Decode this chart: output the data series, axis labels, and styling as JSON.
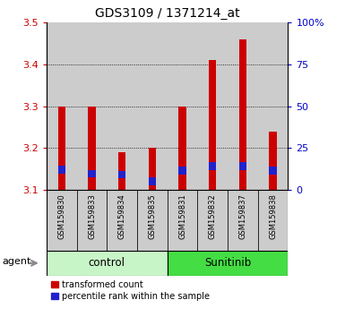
{
  "title": "GDS3109 / 1371214_at",
  "samples": [
    "GSM159830",
    "GSM159833",
    "GSM159834",
    "GSM159835",
    "GSM159831",
    "GSM159832",
    "GSM159837",
    "GSM159838"
  ],
  "red_values": [
    3.3,
    3.3,
    3.19,
    3.2,
    3.3,
    3.41,
    3.46,
    3.24
  ],
  "blue_values": [
    3.14,
    3.13,
    3.128,
    3.112,
    3.138,
    3.148,
    3.148,
    3.138
  ],
  "blue_heights": [
    0.018,
    0.018,
    0.018,
    0.018,
    0.018,
    0.018,
    0.018,
    0.018
  ],
  "ymin": 3.1,
  "ymax": 3.5,
  "y_ticks_left": [
    3.1,
    3.2,
    3.3,
    3.4,
    3.5
  ],
  "y_ticks_right": [
    0,
    25,
    50,
    75,
    100
  ],
  "y_ticks_right_labels": [
    "0",
    "25",
    "50",
    "75",
    "100%"
  ],
  "groups": [
    {
      "label": "control",
      "start": 0,
      "end": 4,
      "color": "#c8f5c8"
    },
    {
      "label": "Sunitinib",
      "start": 4,
      "end": 8,
      "color": "#44dd44"
    }
  ],
  "bar_color_red": "#cc0000",
  "bar_color_blue": "#2222cc",
  "bar_width": 0.25,
  "background_color": "#ffffff",
  "grid_color": "black",
  "title_color": "#000000",
  "left_tick_color": "#cc0000",
  "right_tick_color": "#0000cc",
  "legend_red_label": "transformed count",
  "legend_blue_label": "percentile rank within the sample",
  "sample_bg_color": "#cccccc"
}
